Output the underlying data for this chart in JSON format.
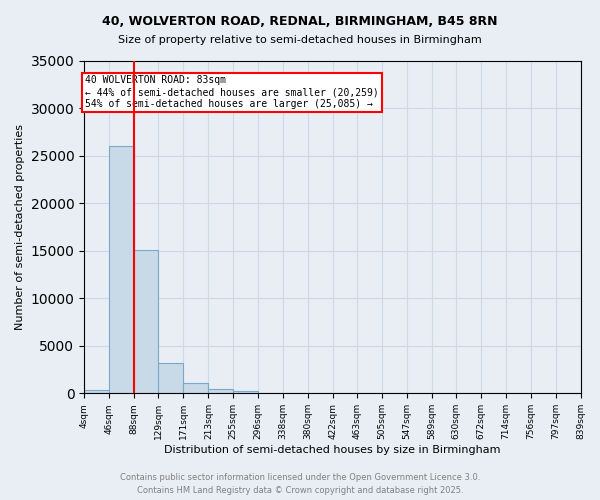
{
  "title1": "40, WOLVERTON ROAD, REDNAL, BIRMINGHAM, B45 8RN",
  "title2": "Size of property relative to semi-detached houses in Birmingham",
  "xlabel": "Distribution of semi-detached houses by size in Birmingham",
  "ylabel": "Number of semi-detached properties",
  "bin_labels": [
    "4sqm",
    "46sqm",
    "88sqm",
    "129sqm",
    "171sqm",
    "213sqm",
    "255sqm",
    "296sqm",
    "338sqm",
    "380sqm",
    "422sqm",
    "463sqm",
    "505sqm",
    "547sqm",
    "589sqm",
    "630sqm",
    "672sqm",
    "714sqm",
    "756sqm",
    "797sqm",
    "839sqm"
  ],
  "bin_edges": [
    4,
    46,
    88,
    129,
    171,
    213,
    255,
    296,
    338,
    380,
    422,
    463,
    505,
    547,
    589,
    630,
    672,
    714,
    756,
    797,
    839
  ],
  "bar_heights": [
    400,
    26000,
    15100,
    3200,
    1100,
    500,
    200,
    50,
    0,
    0,
    0,
    0,
    0,
    0,
    0,
    0,
    0,
    0,
    0,
    0
  ],
  "bar_color": "#c8d9e8",
  "bar_edge_color": "#7aaac8",
  "grid_color": "#d0d8e8",
  "background_color": "#e8eef4",
  "property_line_x": 88,
  "property_size": 83,
  "pct_smaller": 44,
  "count_smaller": 20259,
  "pct_larger": 54,
  "count_larger": 25085,
  "annotation_text_line1": "40 WOLVERTON ROAD: 83sqm",
  "annotation_text_line2": "← 44% of semi-detached houses are smaller (20,259)",
  "annotation_text_line3": "54% of semi-detached houses are larger (25,085) →",
  "footer1": "Contains HM Land Registry data © Crown copyright and database right 2025.",
  "footer2": "Contains public sector information licensed under the Open Government Licence 3.0.",
  "ylim": [
    0,
    35000
  ],
  "yticks": [
    0,
    5000,
    10000,
    15000,
    20000,
    25000,
    30000,
    35000
  ]
}
